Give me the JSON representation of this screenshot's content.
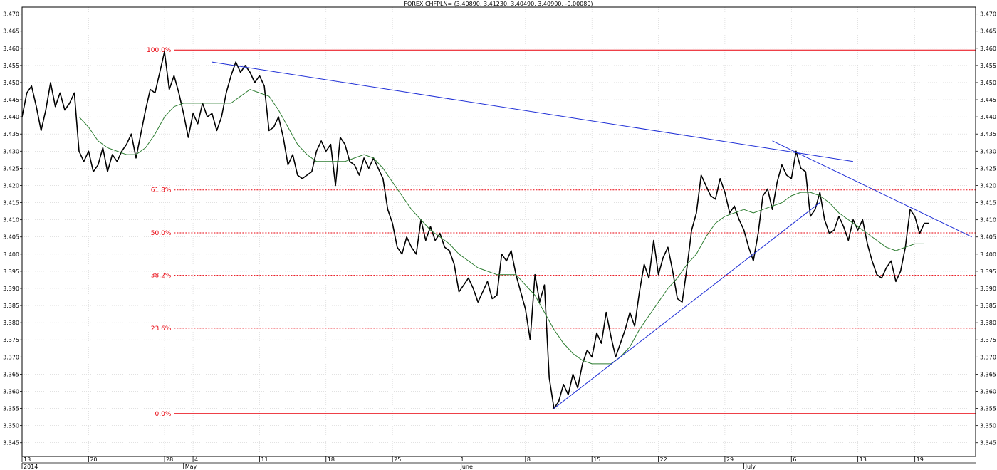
{
  "chart_data": {
    "type": "line",
    "title": "FOREX CHFPLN= (3.40890, 3.41230, 3.40490, 3.40900, -0.00080)",
    "ylim": [
      3.341,
      3.472
    ],
    "y_ticks": [
      "3.345",
      "3.350",
      "3.355",
      "3.360",
      "3.365",
      "3.370",
      "3.375",
      "3.380",
      "3.385",
      "3.390",
      "3.395",
      "3.400",
      "3.405",
      "3.410",
      "3.415",
      "3.420",
      "3.425",
      "3.430",
      "3.435",
      "3.440",
      "3.445",
      "3.450",
      "3.455",
      "3.460",
      "3.465",
      "3.470"
    ],
    "x_ticks": [
      {
        "day": 0,
        "label": "13"
      },
      {
        "day": 7,
        "label": "20"
      },
      {
        "day": 15,
        "label": "28"
      },
      {
        "day": 18,
        "label": "4"
      },
      {
        "day": 25,
        "label": "11"
      },
      {
        "day": 32,
        "label": "18"
      },
      {
        "day": 39,
        "label": "25"
      },
      {
        "day": 46,
        "label": "1"
      },
      {
        "day": 53,
        "label": "8"
      },
      {
        "day": 60,
        "label": "15"
      },
      {
        "day": 67,
        "label": "22"
      },
      {
        "day": 74,
        "label": "29"
      },
      {
        "day": 81,
        "label": "6"
      },
      {
        "day": 88,
        "label": "13"
      },
      {
        "day": 94,
        "label": "19"
      }
    ],
    "month_labels": [
      {
        "day": 0,
        "label": "2014"
      },
      {
        "day": 17,
        "label": "May"
      },
      {
        "day": 46,
        "label": "June"
      },
      {
        "day": 76,
        "label": "July"
      }
    ],
    "series": [
      {
        "color": "#000000",
        "points": [
          [
            0,
            3.44
          ],
          [
            0.5,
            3.447
          ],
          [
            1,
            3.449
          ],
          [
            1.5,
            3.443
          ],
          [
            2,
            3.436
          ],
          [
            2.5,
            3.442
          ],
          [
            3,
            3.45
          ],
          [
            3.5,
            3.443
          ],
          [
            4,
            3.447
          ],
          [
            4.5,
            3.442
          ],
          [
            5,
            3.444
          ],
          [
            5.5,
            3.447
          ],
          [
            6,
            3.43
          ],
          [
            6.5,
            3.427
          ],
          [
            7,
            3.43
          ],
          [
            7.5,
            3.424
          ],
          [
            8,
            3.426
          ],
          [
            8.5,
            3.431
          ],
          [
            9,
            3.424
          ],
          [
            9.5,
            3.429
          ],
          [
            10,
            3.427
          ],
          [
            10.5,
            3.43
          ],
          [
            11,
            3.432
          ],
          [
            11.5,
            3.435
          ],
          [
            12,
            3.428
          ],
          [
            12.5,
            3.435
          ],
          [
            13,
            3.442
          ],
          [
            13.5,
            3.448
          ],
          [
            14,
            3.447
          ],
          [
            14.5,
            3.453
          ],
          [
            15,
            3.459
          ],
          [
            15.5,
            3.448
          ],
          [
            16,
            3.452
          ],
          [
            16.5,
            3.447
          ],
          [
            17,
            3.441
          ],
          [
            17.5,
            3.434
          ],
          [
            18,
            3.441
          ],
          [
            18.5,
            3.438
          ],
          [
            19,
            3.444
          ],
          [
            19.5,
            3.44
          ],
          [
            20,
            3.441
          ],
          [
            20.5,
            3.436
          ],
          [
            21,
            3.44
          ],
          [
            21.5,
            3.447
          ],
          [
            22,
            3.452
          ],
          [
            22.5,
            3.456
          ],
          [
            23,
            3.453
          ],
          [
            23.5,
            3.455
          ],
          [
            24,
            3.453
          ],
          [
            24.5,
            3.45
          ],
          [
            25,
            3.452
          ],
          [
            25.5,
            3.449
          ],
          [
            26,
            3.436
          ],
          [
            26.5,
            3.437
          ],
          [
            27,
            3.44
          ],
          [
            27.5,
            3.434
          ],
          [
            28,
            3.426
          ],
          [
            28.5,
            3.429
          ],
          [
            29,
            3.423
          ],
          [
            29.5,
            3.422
          ],
          [
            30,
            3.423
          ],
          [
            30.5,
            3.424
          ],
          [
            31,
            3.43
          ],
          [
            31.5,
            3.433
          ],
          [
            32,
            3.43
          ],
          [
            32.5,
            3.432
          ],
          [
            33,
            3.42
          ],
          [
            33.5,
            3.434
          ],
          [
            34,
            3.432
          ],
          [
            34.5,
            3.427
          ],
          [
            35,
            3.426
          ],
          [
            35.5,
            3.423
          ],
          [
            36,
            3.428
          ],
          [
            36.5,
            3.425
          ],
          [
            37,
            3.428
          ],
          [
            37.5,
            3.425
          ],
          [
            38,
            3.422
          ],
          [
            38.5,
            3.413
          ],
          [
            39,
            3.409
          ],
          [
            39.5,
            3.402
          ],
          [
            40,
            3.4
          ],
          [
            40.5,
            3.405
          ],
          [
            41,
            3.402
          ],
          [
            41.5,
            3.4
          ],
          [
            42,
            3.41
          ],
          [
            42.5,
            3.404
          ],
          [
            43,
            3.408
          ],
          [
            43.5,
            3.404
          ],
          [
            44,
            3.406
          ],
          [
            44.5,
            3.402
          ],
          [
            45,
            3.401
          ],
          [
            45.5,
            3.397
          ],
          [
            46,
            3.389
          ],
          [
            46.5,
            3.391
          ],
          [
            47,
            3.393
          ],
          [
            47.5,
            3.39
          ],
          [
            48,
            3.386
          ],
          [
            48.5,
            3.389
          ],
          [
            49,
            3.392
          ],
          [
            49.5,
            3.387
          ],
          [
            50,
            3.388
          ],
          [
            50.5,
            3.4
          ],
          [
            51,
            3.398
          ],
          [
            51.5,
            3.401
          ],
          [
            52,
            3.394
          ],
          [
            52.5,
            3.389
          ],
          [
            53,
            3.384
          ],
          [
            53.5,
            3.375
          ],
          [
            54,
            3.394
          ],
          [
            54.5,
            3.386
          ],
          [
            55,
            3.391
          ],
          [
            55.5,
            3.364
          ],
          [
            56,
            3.355
          ],
          [
            56.5,
            3.357
          ],
          [
            57,
            3.362
          ],
          [
            57.5,
            3.359
          ],
          [
            58,
            3.365
          ],
          [
            58.5,
            3.361
          ],
          [
            59,
            3.368
          ],
          [
            59.5,
            3.372
          ],
          [
            60,
            3.37
          ],
          [
            60.5,
            3.377
          ],
          [
            61,
            3.374
          ],
          [
            61.5,
            3.383
          ],
          [
            62,
            3.376
          ],
          [
            62.5,
            3.37
          ],
          [
            63,
            3.374
          ],
          [
            63.5,
            3.378
          ],
          [
            64,
            3.383
          ],
          [
            64.5,
            3.379
          ],
          [
            65,
            3.389
          ],
          [
            65.5,
            3.397
          ],
          [
            66,
            3.393
          ],
          [
            66.5,
            3.404
          ],
          [
            67,
            3.394
          ],
          [
            67.5,
            3.399
          ],
          [
            68,
            3.402
          ],
          [
            68.5,
            3.395
          ],
          [
            69,
            3.387
          ],
          [
            69.5,
            3.386
          ],
          [
            70,
            3.396
          ],
          [
            70.5,
            3.407
          ],
          [
            71,
            3.412
          ],
          [
            71.5,
            3.423
          ],
          [
            72,
            3.42
          ],
          [
            72.5,
            3.417
          ],
          [
            73,
            3.416
          ],
          [
            73.5,
            3.422
          ],
          [
            74,
            3.418
          ],
          [
            74.5,
            3.412
          ],
          [
            75,
            3.414
          ],
          [
            75.5,
            3.41
          ],
          [
            76,
            3.407
          ],
          [
            76.5,
            3.402
          ],
          [
            77,
            3.398
          ],
          [
            77.5,
            3.406
          ],
          [
            78,
            3.417
          ],
          [
            78.5,
            3.419
          ],
          [
            79,
            3.413
          ],
          [
            79.5,
            3.421
          ],
          [
            80,
            3.426
          ],
          [
            80.5,
            3.423
          ],
          [
            81,
            3.422
          ],
          [
            81.5,
            3.43
          ],
          [
            82,
            3.425
          ],
          [
            82.5,
            3.424
          ],
          [
            83,
            3.411
          ],
          [
            83.5,
            3.413
          ],
          [
            84,
            3.418
          ],
          [
            84.5,
            3.41
          ],
          [
            85,
            3.406
          ],
          [
            85.5,
            3.407
          ],
          [
            86,
            3.411
          ],
          [
            86.5,
            3.408
          ],
          [
            87,
            3.404
          ],
          [
            87.5,
            3.41
          ],
          [
            88,
            3.407
          ],
          [
            88.5,
            3.41
          ],
          [
            89,
            3.403
          ],
          [
            89.5,
            3.398
          ],
          [
            90,
            3.394
          ],
          [
            90.5,
            3.393
          ],
          [
            91,
            3.396
          ],
          [
            91.5,
            3.398
          ],
          [
            92,
            3.392
          ],
          [
            92.5,
            3.395
          ],
          [
            93,
            3.402
          ],
          [
            93.5,
            3.413
          ],
          [
            94,
            3.411
          ],
          [
            94.5,
            3.406
          ],
          [
            95,
            3.409
          ],
          [
            95.5,
            3.409
          ]
        ]
      },
      {
        "color": "#2e7d32",
        "points": [
          [
            6,
            3.44
          ],
          [
            7,
            3.437
          ],
          [
            8,
            3.433
          ],
          [
            9,
            3.431
          ],
          [
            10,
            3.43
          ],
          [
            11,
            3.429
          ],
          [
            12,
            3.429
          ],
          [
            13,
            3.431
          ],
          [
            14,
            3.435
          ],
          [
            15,
            3.44
          ],
          [
            16,
            3.443
          ],
          [
            17,
            3.444
          ],
          [
            18,
            3.444
          ],
          [
            19,
            3.444
          ],
          [
            20,
            3.444
          ],
          [
            21,
            3.444
          ],
          [
            22,
            3.444
          ],
          [
            23,
            3.446
          ],
          [
            24,
            3.448
          ],
          [
            25,
            3.447
          ],
          [
            26,
            3.446
          ],
          [
            27,
            3.442
          ],
          [
            28,
            3.437
          ],
          [
            29,
            3.432
          ],
          [
            30,
            3.429
          ],
          [
            31,
            3.427
          ],
          [
            32,
            3.427
          ],
          [
            33,
            3.427
          ],
          [
            34,
            3.427
          ],
          [
            35,
            3.428
          ],
          [
            36,
            3.429
          ],
          [
            37,
            3.428
          ],
          [
            38,
            3.425
          ],
          [
            39,
            3.421
          ],
          [
            40,
            3.417
          ],
          [
            41,
            3.413
          ],
          [
            42,
            3.41
          ],
          [
            43,
            3.407
          ],
          [
            44,
            3.405
          ],
          [
            45,
            3.403
          ],
          [
            46,
            3.4
          ],
          [
            47,
            3.398
          ],
          [
            48,
            3.396
          ],
          [
            49,
            3.395
          ],
          [
            50,
            3.394
          ],
          [
            51,
            3.394
          ],
          [
            52,
            3.394
          ],
          [
            53,
            3.391
          ],
          [
            54,
            3.388
          ],
          [
            55,
            3.383
          ],
          [
            56,
            3.378
          ],
          [
            57,
            3.374
          ],
          [
            58,
            3.371
          ],
          [
            59,
            3.369
          ],
          [
            60,
            3.368
          ],
          [
            61,
            3.368
          ],
          [
            62,
            3.368
          ],
          [
            63,
            3.37
          ],
          [
            64,
            3.373
          ],
          [
            65,
            3.378
          ],
          [
            66,
            3.382
          ],
          [
            67,
            3.386
          ],
          [
            68,
            3.39
          ],
          [
            69,
            3.393
          ],
          [
            70,
            3.397
          ],
          [
            71,
            3.4
          ],
          [
            72,
            3.405
          ],
          [
            73,
            3.409
          ],
          [
            74,
            3.411
          ],
          [
            75,
            3.412
          ],
          [
            76,
            3.413
          ],
          [
            77,
            3.412
          ],
          [
            78,
            3.413
          ],
          [
            79,
            3.414
          ],
          [
            80,
            3.415
          ],
          [
            81,
            3.417
          ],
          [
            82,
            3.418
          ],
          [
            83,
            3.418
          ],
          [
            84,
            3.417
          ],
          [
            85,
            3.415
          ],
          [
            86,
            3.412
          ],
          [
            87,
            3.41
          ],
          [
            88,
            3.408
          ],
          [
            89,
            3.406
          ],
          [
            90,
            3.404
          ],
          [
            91,
            3.402
          ],
          [
            92,
            3.401
          ],
          [
            93,
            3.402
          ],
          [
            94,
            3.403
          ],
          [
            95,
            3.403
          ]
        ]
      }
    ],
    "trendlines": [
      {
        "color": "#1f2fd6",
        "from": [
          20,
          3.456
        ],
        "to": [
          87.5,
          3.427
        ]
      },
      {
        "color": "#1f2fd6",
        "from": [
          56,
          3.355
        ],
        "to": [
          84,
          3.415
        ]
      },
      {
        "color": "#1f2fd6",
        "from": [
          79,
          3.433
        ],
        "to": [
          100,
          3.405
        ]
      }
    ],
    "fib_levels": [
      {
        "label": "100.0%",
        "value": 3.4595,
        "style": "solid"
      },
      {
        "label": "61.8%",
        "value": 3.4187,
        "style": "dotted"
      },
      {
        "label": "50.0%",
        "value": 3.4062,
        "style": "dotted"
      },
      {
        "label": "38.2%",
        "value": 3.3938,
        "style": "dotted"
      },
      {
        "label": "23.6%",
        "value": 3.3784,
        "style": "dotted"
      },
      {
        "label": "0.0%",
        "value": 3.3535,
        "style": "solid"
      }
    ],
    "grid": true,
    "fib_color": "#e8000b"
  }
}
